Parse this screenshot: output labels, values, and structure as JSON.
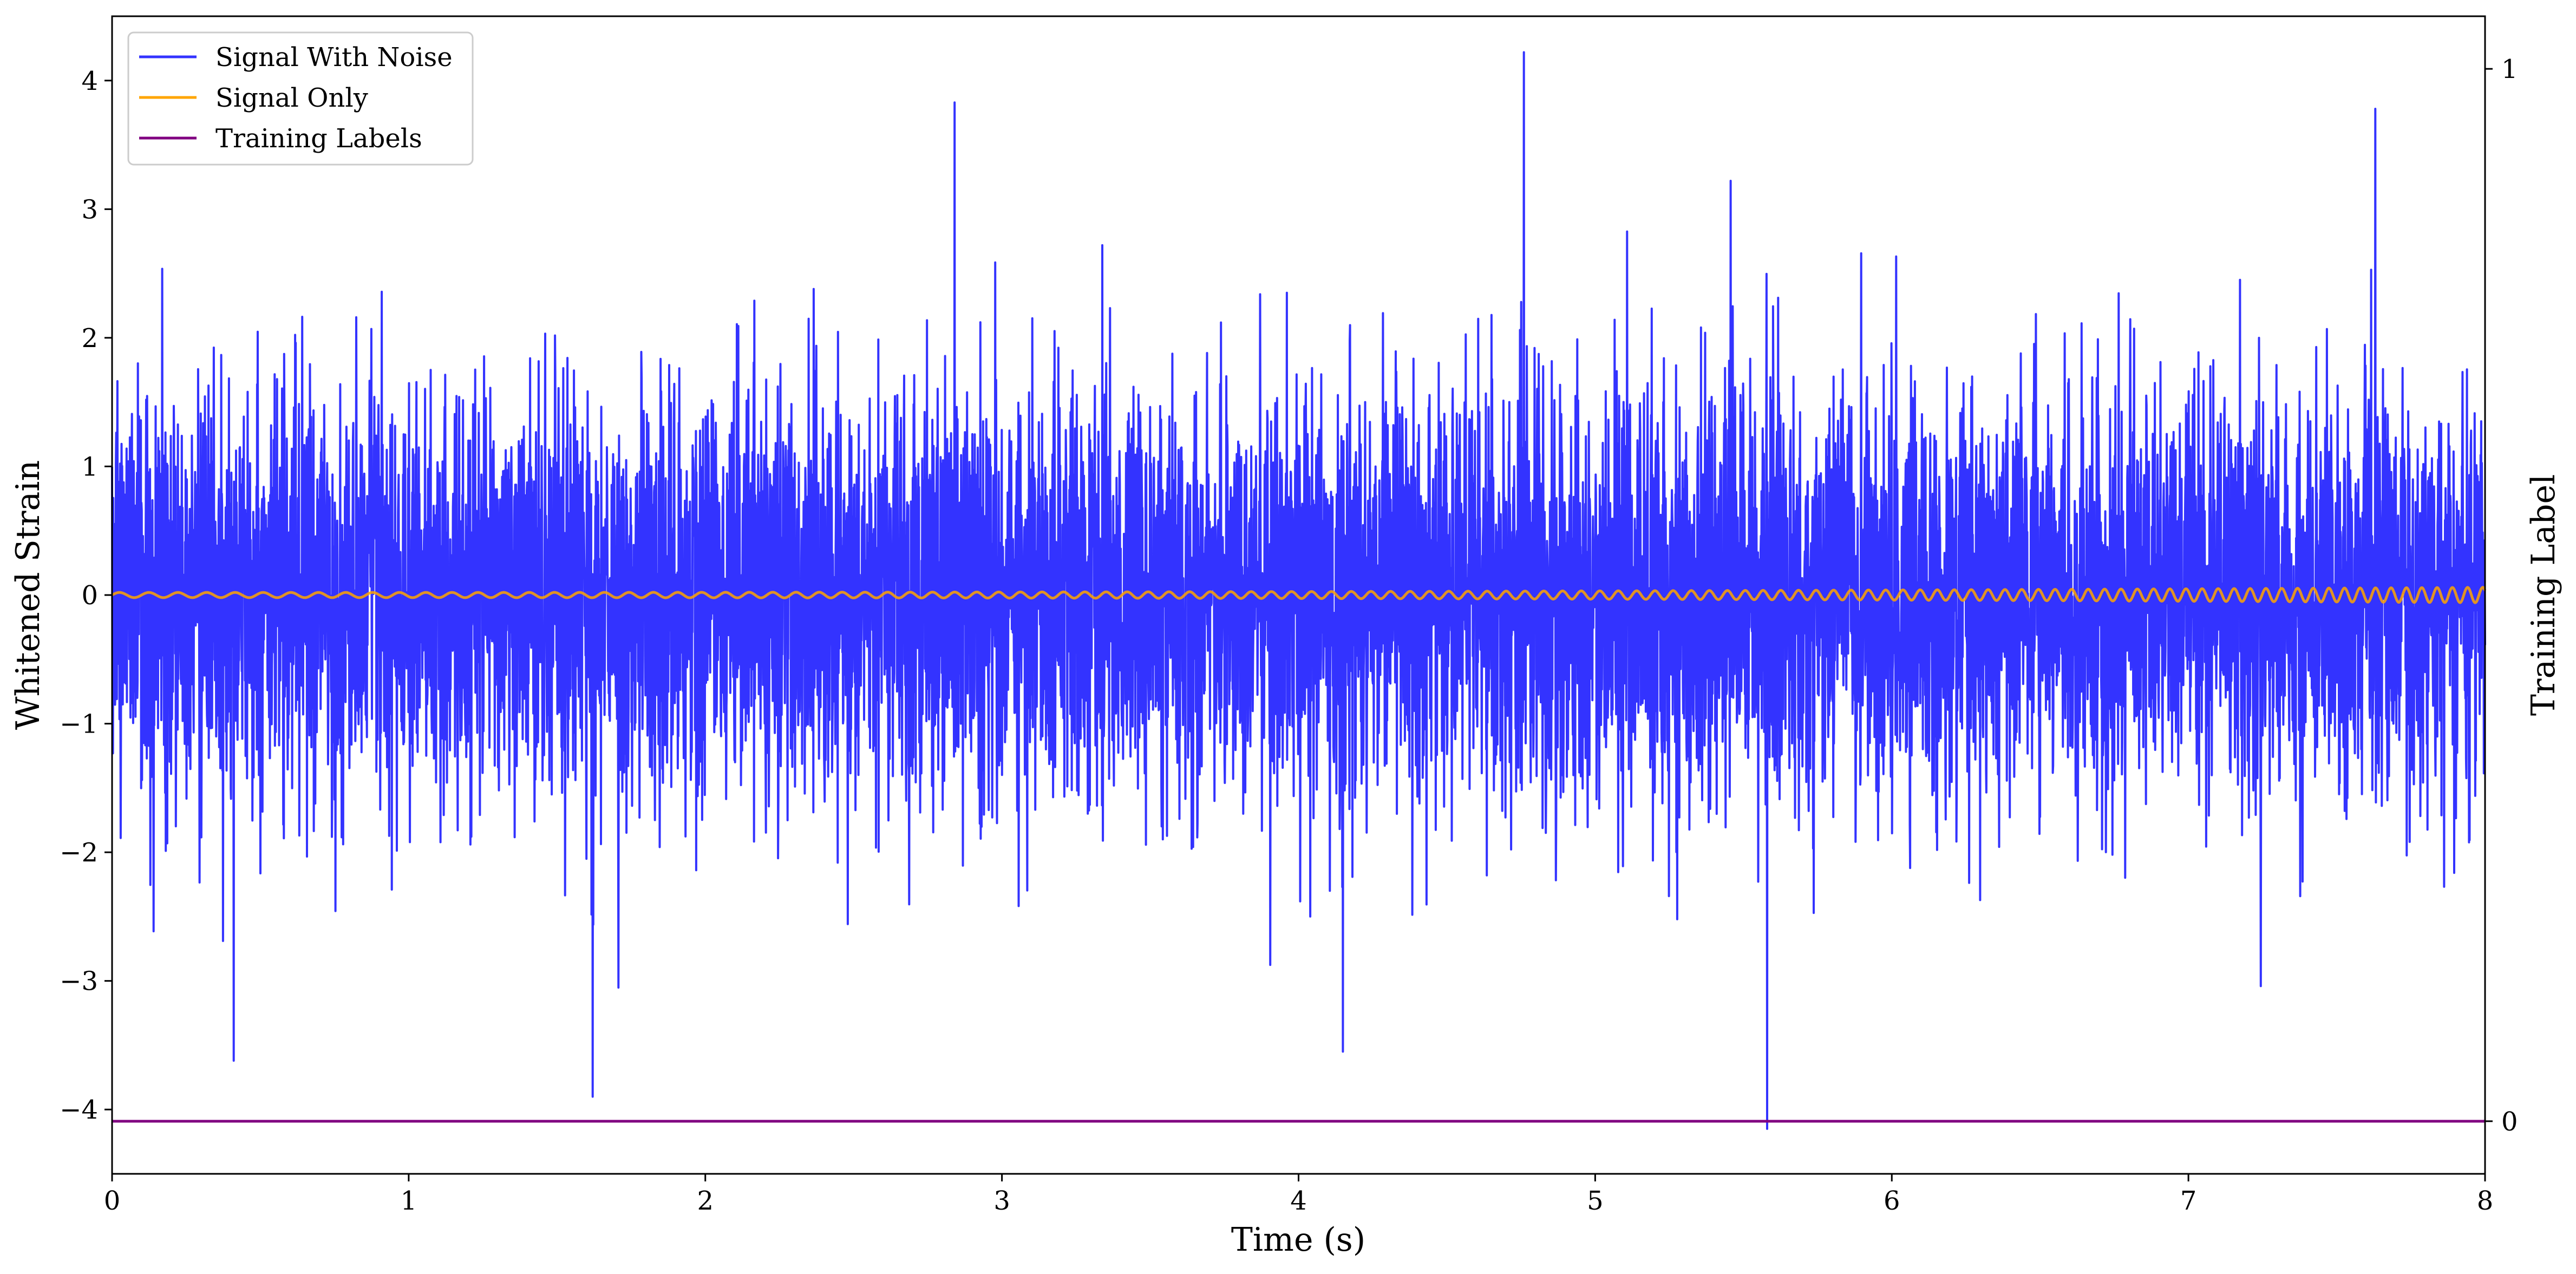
{
  "chart_data": {
    "type": "line",
    "title": "",
    "xlabel": "Time (s)",
    "ylabel": "Whitened Strain",
    "y2label": "Training Label",
    "xlim": [
      0,
      8
    ],
    "ylim": [
      -4.5,
      4.5
    ],
    "y2lim": [
      -0.05,
      1.05
    ],
    "x_ticks": [
      0,
      1,
      2,
      3,
      4,
      5,
      6,
      7,
      8
    ],
    "x_tick_labels": [
      "0",
      "1",
      "2",
      "3",
      "4",
      "5",
      "6",
      "7",
      "8"
    ],
    "y_ticks": [
      -4,
      -3,
      -2,
      -1,
      0,
      1,
      2,
      3,
      4
    ],
    "y_tick_labels": [
      "−4",
      "−3",
      "−2",
      "−1",
      "0",
      "1",
      "2",
      "3",
      "4"
    ],
    "y2_ticks": [
      0,
      1
    ],
    "y2_tick_labels": [
      "0",
      "1"
    ],
    "grid": false,
    "legend_position": "top-left",
    "series": [
      {
        "name": "Signal With Noise",
        "color": "#3333ff",
        "axis": "left",
        "kind": "noise",
        "x_range": [
          0,
          8
        ],
        "mean": 0,
        "std": 0.8,
        "min": -4.15,
        "max": 4.22,
        "extremes": [
          {
            "x": 4.76,
            "y": 4.22
          },
          {
            "x": 2.84,
            "y": 3.83
          },
          {
            "x": 7.63,
            "y": 3.78
          },
          {
            "x": 5.58,
            "y": -4.15
          },
          {
            "x": 1.62,
            "y": -3.9
          },
          {
            "x": 0.41,
            "y": -3.62
          },
          {
            "x": 4.15,
            "y": -3.55
          }
        ]
      },
      {
        "name": "Signal Only",
        "color": "#ffa500",
        "axis": "left",
        "kind": "chirp",
        "x_range": [
          0,
          8
        ],
        "amplitude_start": 0.02,
        "amplitude_end": 0.06
      },
      {
        "name": "Training Labels",
        "color": "#800080",
        "axis": "right",
        "kind": "constant",
        "x_range": [
          0,
          8
        ],
        "value": 0
      }
    ]
  }
}
